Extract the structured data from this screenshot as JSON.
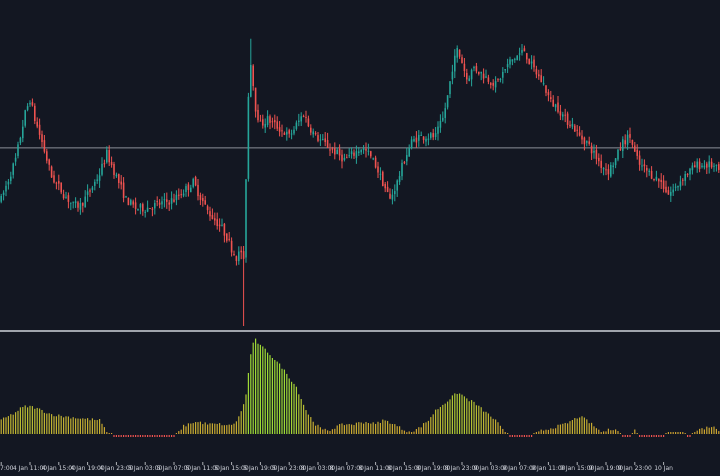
{
  "chart_data": [
    {
      "type": "candlestick",
      "pane": "price",
      "title": "",
      "xlabel": "",
      "ylabel": "",
      "grid": false,
      "horizontal_line_value": 82.0,
      "ylim": [
        20,
        130
      ],
      "colors": {
        "up": "#26a69a",
        "down": "#ef5350",
        "background": "#131722",
        "line": "#8a8f98"
      },
      "close_path": [
        [
          0,
          64
        ],
        [
          3,
          71
        ],
        [
          6,
          78
        ],
        [
          8,
          86
        ],
        [
          10,
          94
        ],
        [
          12,
          99
        ],
        [
          14,
          92
        ],
        [
          17,
          84
        ],
        [
          21,
          72
        ],
        [
          26,
          66
        ],
        [
          30,
          62
        ],
        [
          33,
          62
        ],
        [
          37,
          67
        ],
        [
          41,
          73
        ],
        [
          44,
          80
        ],
        [
          48,
          72
        ],
        [
          52,
          64
        ],
        [
          56,
          61
        ],
        [
          60,
          61
        ],
        [
          64,
          62
        ],
        [
          68,
          63
        ],
        [
          72,
          64
        ],
        [
          76,
          67
        ],
        [
          80,
          70
        ],
        [
          83,
          65
        ],
        [
          86,
          60
        ],
        [
          89,
          57
        ],
        [
          92,
          54
        ],
        [
          94,
          51
        ],
        [
          96,
          47
        ],
        [
          98,
          44
        ],
        [
          100,
          46
        ],
        [
          101,
          42
        ],
        [
          102,
          72
        ],
        [
          103,
          100
        ],
        [
          104,
          112
        ],
        [
          105,
          104
        ],
        [
          106,
          96
        ],
        [
          108,
          90
        ],
        [
          111,
          92
        ],
        [
          114,
          90
        ],
        [
          117,
          88
        ],
        [
          120,
          86
        ],
        [
          123,
          90
        ],
        [
          126,
          94
        ],
        [
          128,
          90
        ],
        [
          131,
          86
        ],
        [
          134,
          84
        ],
        [
          137,
          82
        ],
        [
          140,
          80
        ],
        [
          143,
          78
        ],
        [
          147,
          80
        ],
        [
          150,
          82
        ],
        [
          153,
          80
        ],
        [
          156,
          76
        ],
        [
          159,
          70
        ],
        [
          162,
          64
        ],
        [
          165,
          70
        ],
        [
          168,
          78
        ],
        [
          171,
          84
        ],
        [
          174,
          86
        ],
        [
          178,
          86
        ],
        [
          181,
          86
        ],
        [
          184,
          92
        ],
        [
          186,
          100
        ],
        [
          188,
          110
        ],
        [
          190,
          116
        ],
        [
          192,
          112
        ],
        [
          194,
          106
        ],
        [
          197,
          110
        ],
        [
          200,
          108
        ],
        [
          203,
          106
        ],
        [
          206,
          104
        ],
        [
          209,
          108
        ],
        [
          212,
          112
        ],
        [
          215,
          114
        ],
        [
          218,
          116
        ],
        [
          220,
          112
        ],
        [
          223,
          108
        ],
        [
          226,
          104
        ],
        [
          229,
          98
        ],
        [
          232,
          96
        ],
        [
          235,
          92
        ],
        [
          238,
          90
        ],
        [
          241,
          86
        ],
        [
          244,
          84
        ],
        [
          247,
          80
        ],
        [
          250,
          76
        ],
        [
          253,
          74
        ],
        [
          256,
          78
        ],
        [
          259,
          84
        ],
        [
          262,
          86
        ],
        [
          264,
          80
        ],
        [
          266,
          76
        ],
        [
          269,
          74
        ],
        [
          272,
          72
        ],
        [
          275,
          70
        ],
        [
          278,
          66
        ],
        [
          281,
          68
        ],
        [
          284,
          72
        ],
        [
          287,
          74
        ],
        [
          290,
          76
        ],
        [
          293,
          76
        ],
        [
          296,
          76
        ],
        [
          299,
          74
        ]
      ],
      "wick_spikes": [
        {
          "bar_value": 101,
          "low": 20
        },
        {
          "bar_value": 104,
          "high": 120
        }
      ]
    },
    {
      "type": "histogram",
      "pane": "indicator",
      "title": "",
      "xlabel": "",
      "ylabel": "",
      "ylim": [
        0,
        100
      ],
      "colors": {
        "low": "#d0a030",
        "high": "#9ed936",
        "negative": "#ef5350"
      },
      "level_path": [
        [
          0,
          14
        ],
        [
          3,
          18
        ],
        [
          6,
          22
        ],
        [
          8,
          26
        ],
        [
          10,
          28
        ],
        [
          12,
          28
        ],
        [
          14,
          27
        ],
        [
          17,
          24
        ],
        [
          21,
          20
        ],
        [
          26,
          18
        ],
        [
          30,
          17
        ],
        [
          33,
          16
        ],
        [
          37,
          15
        ],
        [
          41,
          14
        ],
        [
          44,
          2
        ],
        [
          48,
          -2
        ],
        [
          52,
          -2
        ],
        [
          56,
          -2
        ],
        [
          60,
          -2
        ],
        [
          64,
          -2
        ],
        [
          68,
          -2
        ],
        [
          72,
          -2
        ],
        [
          76,
          8
        ],
        [
          80,
          12
        ],
        [
          83,
          12
        ],
        [
          86,
          10
        ],
        [
          89,
          10
        ],
        [
          92,
          10
        ],
        [
          94,
          8
        ],
        [
          96,
          10
        ],
        [
          98,
          12
        ],
        [
          100,
          24
        ],
        [
          101,
          30
        ],
        [
          102,
          40
        ],
        [
          103,
          62
        ],
        [
          104,
          82
        ],
        [
          105,
          92
        ],
        [
          106,
          96
        ],
        [
          108,
          90
        ],
        [
          111,
          84
        ],
        [
          114,
          76
        ],
        [
          117,
          68
        ],
        [
          120,
          58
        ],
        [
          123,
          48
        ],
        [
          126,
          30
        ],
        [
          128,
          20
        ],
        [
          131,
          10
        ],
        [
          134,
          4
        ],
        [
          137,
          4
        ],
        [
          140,
          8
        ],
        [
          143,
          10
        ],
        [
          147,
          10
        ],
        [
          150,
          12
        ],
        [
          153,
          12
        ],
        [
          156,
          10
        ],
        [
          159,
          14
        ],
        [
          162,
          12
        ],
        [
          165,
          8
        ],
        [
          168,
          4
        ],
        [
          171,
          2
        ],
        [
          174,
          6
        ],
        [
          178,
          14
        ],
        [
          181,
          24
        ],
        [
          184,
          30
        ],
        [
          186,
          34
        ],
        [
          188,
          38
        ],
        [
          190,
          42
        ],
        [
          192,
          40
        ],
        [
          194,
          36
        ],
        [
          197,
          32
        ],
        [
          200,
          26
        ],
        [
          203,
          20
        ],
        [
          206,
          14
        ],
        [
          209,
          4
        ],
        [
          212,
          -2
        ],
        [
          215,
          -2
        ],
        [
          218,
          -2
        ],
        [
          220,
          -2
        ],
        [
          223,
          2
        ],
        [
          226,
          4
        ],
        [
          229,
          6
        ],
        [
          232,
          8
        ],
        [
          235,
          10
        ],
        [
          238,
          14
        ],
        [
          241,
          18
        ],
        [
          244,
          14
        ],
        [
          247,
          8
        ],
        [
          250,
          2
        ],
        [
          253,
          4
        ],
        [
          256,
          6
        ],
        [
          259,
          -2
        ],
        [
          262,
          -2
        ],
        [
          264,
          4
        ],
        [
          266,
          -2
        ],
        [
          269,
          -2
        ],
        [
          272,
          -2
        ],
        [
          275,
          -2
        ],
        [
          278,
          2
        ],
        [
          281,
          2
        ],
        [
          284,
          2
        ],
        [
          287,
          -2
        ],
        [
          290,
          4
        ],
        [
          293,
          6
        ],
        [
          296,
          8
        ],
        [
          299,
          4
        ]
      ]
    }
  ],
  "x_axis": {
    "ticks": [
      {
        "x": 0,
        "label": "7:00"
      },
      {
        "x": 12,
        "label": "4 Jan 11:00"
      },
      {
        "x": 24,
        "label": "4 Jan 15:00"
      },
      {
        "x": 36,
        "label": "4 Jan 19:00"
      },
      {
        "x": 48,
        "label": "4 Jan 23:00"
      },
      {
        "x": 60,
        "label": "5 Jan 03:00"
      },
      {
        "x": 72,
        "label": "5 Jan 07:00"
      },
      {
        "x": 84,
        "label": "5 Jan 11:00"
      },
      {
        "x": 96,
        "label": "5 Jan 15:00"
      },
      {
        "x": 108,
        "label": "5 Jan 19:00"
      },
      {
        "x": 120,
        "label": "5 Jan 23:00"
      },
      {
        "x": 132,
        "label": "8 Jan 03:00"
      },
      {
        "x": 144,
        "label": "8 Jan 07:00"
      },
      {
        "x": 156,
        "label": "8 Jan 11:00"
      },
      {
        "x": 168,
        "label": "8 Jan 15:00"
      },
      {
        "x": 180,
        "label": "8 Jan 19:00"
      },
      {
        "x": 192,
        "label": "8 Jan 23:00"
      },
      {
        "x": 204,
        "label": "9 Jan 03:00"
      },
      {
        "x": 216,
        "label": "9 Jan 07:00"
      },
      {
        "x": 228,
        "label": "9 Jan 11:00"
      },
      {
        "x": 240,
        "label": "9 Jan 15:00"
      },
      {
        "x": 252,
        "label": "9 Jan 19:00"
      },
      {
        "x": 264,
        "label": "9 Jan 23:00"
      },
      {
        "x": 276,
        "label": "10 Jan"
      }
    ],
    "range": [
      0,
      299
    ]
  }
}
